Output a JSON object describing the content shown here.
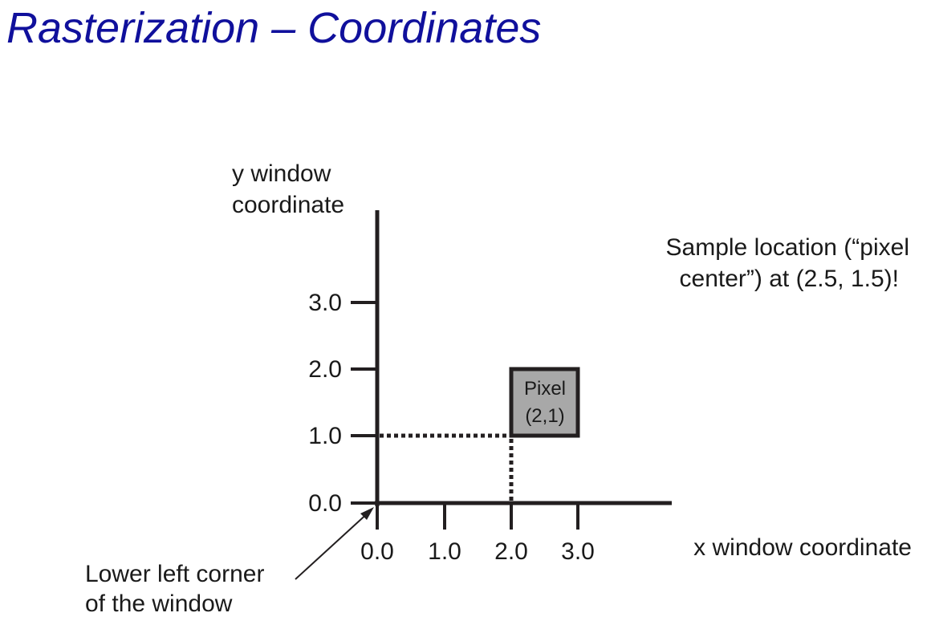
{
  "title": "Rasterization – Coordinates",
  "diagram": {
    "y_axis_label": [
      "y window",
      "coordinate"
    ],
    "x_axis_label": "x window coordinate",
    "y_ticks": [
      "0.0",
      "1.0",
      "2.0",
      "3.0"
    ],
    "x_ticks": [
      "0.0",
      "1.0",
      "2.0",
      "3.0"
    ],
    "pixel_label": [
      "Pixel",
      "(2,1)"
    ],
    "pixel_fill": "#a8a8a8",
    "note": [
      "Sample location (“pixel",
      "center”) at (2.5, 1.5)!"
    ],
    "corner_callout": [
      "Lower left corner",
      "of the window"
    ],
    "title_color": "#10109c",
    "axis_color": "#231f20"
  }
}
